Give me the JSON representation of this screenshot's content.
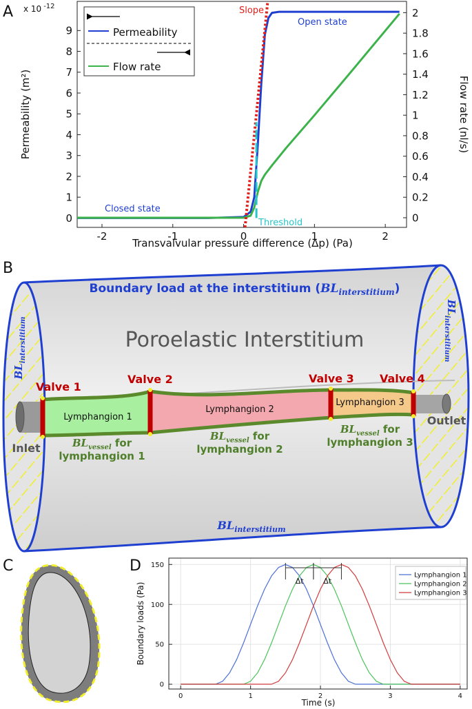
{
  "panel_labels": [
    "A",
    "B",
    "C",
    "D"
  ],
  "chart_data": [
    {
      "type": "line",
      "x_label": "Transvalvular pressure difference (Δp) (Pa)",
      "y_label": "Permeability (m²)",
      "y_multiplier": "x 10",
      "y_multiplier_exponent": "-12",
      "y2_label": "Flow rate (nl/s)",
      "xlim": [
        -2.35,
        2.3
      ],
      "xticks": [
        -2,
        -1,
        0,
        1,
        2
      ],
      "ylim": [
        -0.45,
        10.4
      ],
      "yticks": [
        0,
        1,
        2,
        3,
        4,
        5,
        6,
        7,
        8,
        9
      ],
      "y2lim": [
        -0.094,
        2.11
      ],
      "y2ticks": [
        0,
        0.2,
        0.4,
        0.6,
        0.8,
        1,
        1.2,
        1.4,
        1.6,
        1.8,
        2
      ],
      "grid": false,
      "legend": "upper left",
      "series": [
        {
          "name": "Permeability",
          "color": "#1f3fd0",
          "x": [
            -2.35,
            -0.5,
            0,
            0.1,
            0.15,
            0.2,
            0.25,
            0.3,
            0.35,
            0.4,
            0.5,
            2.2
          ],
          "values": [
            0,
            0,
            0.05,
            0.3,
            1.0,
            3.5,
            6.5,
            8.8,
            9.6,
            9.85,
            9.9,
            9.9
          ]
        },
        {
          "name": "Flow rate",
          "color": "#3cb24a",
          "axis": "y2",
          "x": [
            -2.35,
            0,
            0.1,
            0.15,
            0.2,
            0.25,
            0.3,
            0.4,
            0.6,
            1.0,
            1.5,
            2.2
          ],
          "values": [
            0,
            0,
            0.02,
            0.1,
            0.25,
            0.36,
            0.42,
            0.51,
            0.68,
            1.0,
            1.41,
            1.99
          ]
        }
      ],
      "annotations": [
        {
          "text": "Slope",
          "color": "#e0201b",
          "x": [
            0.02,
            0.34
          ],
          "values": [
            -0.45,
            10.4
          ]
        },
        {
          "text": "Threshold",
          "color": "#28c4c8",
          "x": [
            0.18,
            0.18
          ],
          "values": [
            0,
            4.6
          ]
        },
        {
          "text": "Open state",
          "color": "#1f3fd0"
        },
        {
          "text": "Closed state",
          "color": "#1f3fd0"
        }
      ]
    },
    {
      "type": "line",
      "x_label": "Time (s)",
      "y_label": "Boundary loads (Pa)",
      "xlim": [
        -0.17,
        4.1
      ],
      "xticks": [
        0,
        1,
        2,
        3,
        4
      ],
      "ylim": [
        -6,
        158
      ],
      "yticks": [
        0,
        50,
        100,
        150
      ],
      "grid": true,
      "legend": "upper right",
      "x": [
        0,
        0.1,
        0.2,
        0.3,
        0.4,
        0.5,
        0.6,
        0.7,
        0.8,
        0.9,
        1.0,
        1.1,
        1.2,
        1.3,
        1.4,
        1.5,
        1.6,
        1.7,
        1.8,
        1.9,
        2.0,
        2.1,
        2.2,
        2.3,
        2.4,
        2.5,
        2.6,
        2.7,
        2.8,
        2.9,
        3.0,
        3.1,
        3.2,
        3.3,
        3.4,
        3.5,
        3.6,
        3.7,
        3.8,
        3.9,
        4.0
      ],
      "series": [
        {
          "name": "Lymphangion 1",
          "color": "#4a6fd8",
          "values": [
            0,
            0,
            0,
            0,
            0,
            0,
            3.7,
            14.3,
            30.9,
            51.8,
            75,
            98.2,
            119.1,
            135.7,
            146.3,
            150,
            146.3,
            135.7,
            119.1,
            98.2,
            75,
            51.8,
            30.9,
            14.3,
            3.7,
            0,
            0,
            0,
            0,
            0,
            0,
            0,
            0,
            0,
            0,
            0,
            0,
            0,
            0,
            0,
            0
          ]
        },
        {
          "name": "Lymphangion 2",
          "color": "#4cc35a",
          "values": [
            0,
            0,
            0,
            0,
            0,
            0,
            0,
            0,
            0,
            0,
            3.7,
            14.3,
            30.9,
            51.8,
            75,
            98.2,
            119.1,
            135.7,
            146.3,
            150,
            146.3,
            135.7,
            119.1,
            98.2,
            75,
            51.8,
            30.9,
            14.3,
            3.7,
            0,
            0,
            0,
            0,
            0,
            0,
            0,
            0,
            0,
            0,
            0,
            0
          ]
        },
        {
          "name": "Lymphangion 3",
          "color": "#d23b3b",
          "values": [
            0,
            0,
            0,
            0,
            0,
            0,
            0,
            0,
            0,
            0,
            0,
            0,
            0,
            0,
            3.7,
            14.3,
            30.9,
            51.8,
            75,
            98.2,
            119.1,
            135.7,
            146.3,
            150,
            146.3,
            135.7,
            119.1,
            98.2,
            75,
            51.8,
            30.9,
            14.3,
            3.7,
            0,
            0,
            0,
            0,
            0,
            0,
            0,
            0
          ]
        }
      ],
      "annotations": [
        {
          "text": "Δt",
          "x": [
            1.5,
            1.9
          ]
        },
        {
          "text": "Δt",
          "x": [
            1.9,
            2.3
          ]
        }
      ]
    }
  ],
  "diagram": {
    "title": "Poroelastic Interstitium",
    "top_load": {
      "text": "Boundary load at the interstitium (",
      "symbol": "BL",
      "subscript": "interstitium",
      "close": ")"
    },
    "side_loads": [
      {
        "symbol": "BL",
        "subscript": "interstitium"
      },
      {
        "symbol": "BL",
        "subscript": "interstitium"
      },
      {
        "symbol": "BL",
        "subscript": "interstitium"
      }
    ],
    "valves": [
      "Valve 1",
      "Valve 2",
      "Valve 3",
      "Valve 4"
    ],
    "lymphangions": [
      "Lymphangion 1",
      "Lymphangion 2",
      "Lymphangion 3"
    ],
    "vessel_loads": [
      {
        "symbol": "BL",
        "subscript": "vessel",
        "text": " for",
        "line2": "lymphangion 1"
      },
      {
        "symbol": "BL",
        "subscript": "vessel",
        "text": " for",
        "line2": "lymphangion 2"
      },
      {
        "symbol": "BL",
        "subscript": "vessel",
        "text": " for",
        "line2": "lymphangion 3"
      }
    ],
    "inlet": "Inlet",
    "outlet": "Outlet"
  }
}
